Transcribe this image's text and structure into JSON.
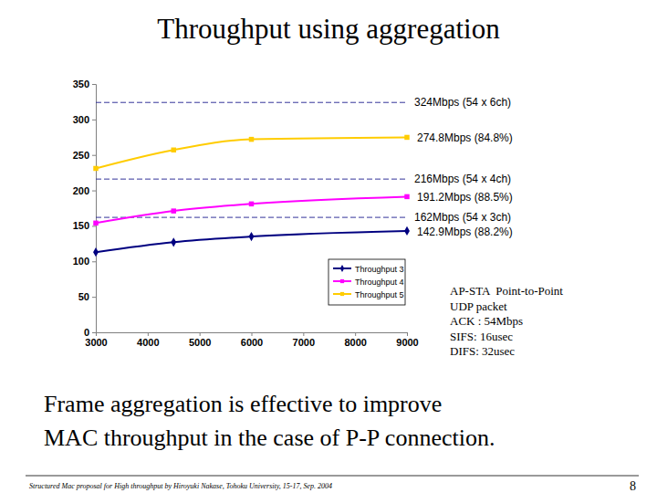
{
  "chart_data": {
    "type": "line",
    "title": "Throughput using aggregation",
    "x": [
      3000,
      4500,
      6000,
      9000
    ],
    "series": [
      {
        "name": "Throughput 3",
        "color": "#000080",
        "marker": "diamond",
        "values": [
          113,
          127,
          135,
          142.9
        ]
      },
      {
        "name": "Throughput 4",
        "color": "#ff00ff",
        "marker": "square",
        "values": [
          154,
          171,
          181,
          191.2
        ]
      },
      {
        "name": "Throughput 5",
        "color": "#ffcc00",
        "marker": "square",
        "values": [
          231,
          257,
          272,
          274.8
        ]
      }
    ],
    "xlim": [
      3000,
      9000
    ],
    "xticks": [
      3000,
      4000,
      5000,
      6000,
      7000,
      8000,
      9000
    ],
    "ylim": [
      0,
      350
    ],
    "yticks": [
      0,
      50,
      100,
      150,
      200,
      250,
      300,
      350
    ],
    "grid": false,
    "legend": "lower right",
    "reference_lines": [
      {
        "y": 324,
        "label": "324Mbps (54 x 6ch)"
      },
      {
        "y": 216,
        "label": "216Mbps (54 x 4ch)"
      },
      {
        "y": 162,
        "label": "162Mbps (54 x 3ch)"
      }
    ],
    "annotations": [
      {
        "y": 274.8,
        "text": "274.8Mbps (84.8%)"
      },
      {
        "y": 191.2,
        "text": "191.2Mbps (88.5%)"
      },
      {
        "y": 142.9,
        "text": "142.9Mbps (88.2%)"
      }
    ]
  },
  "slide": {
    "notes": [
      "AP-STA  Point-to-Point",
      "UDP packet",
      "ACK : 54Mbps",
      "SIFS: 16usec",
      "DIFS: 32usec"
    ],
    "conclusion": [
      "Frame aggregation is effective to improve",
      "MAC throughput in the case of P-P connection."
    ],
    "footer": "Structured Mac proposal for High throughput by Hiroyuki Nakase, Tohoku University, 15-17, Sep. 2004",
    "page": 8
  }
}
